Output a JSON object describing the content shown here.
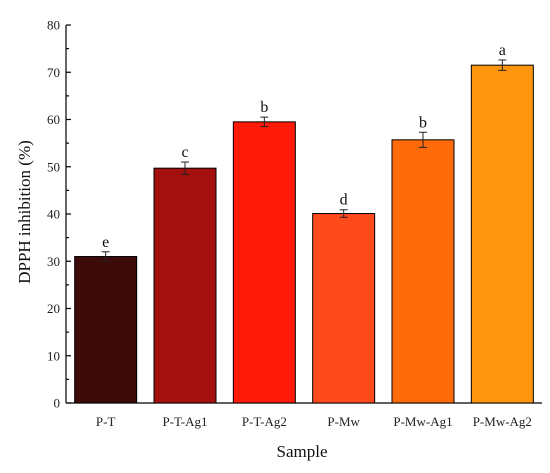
{
  "chart_data": {
    "type": "bar",
    "xlabel": "Sample",
    "ylabel": "DPPH inhibition (%)",
    "ylim": [
      0,
      80
    ],
    "yticks": [
      0,
      10,
      20,
      30,
      40,
      50,
      60,
      70,
      80
    ],
    "grid": false,
    "categories": [
      "P-T",
      "P-T-Ag1",
      "P-T-Ag2",
      "P-Mw",
      "P-Mw-Ag1",
      "P-Mw-Ag2"
    ],
    "values": [
      31.0,
      49.7,
      59.5,
      40.1,
      55.7,
      71.5
    ],
    "errors": [
      1.0,
      1.3,
      1.0,
      0.8,
      1.6,
      1.1
    ],
    "significance_letters": [
      "e",
      "c",
      "b",
      "d",
      "b",
      "a"
    ],
    "colors": [
      "#3d0a0a",
      "#a3100d",
      "#ff1a0a",
      "#ff4a1c",
      "#ff6a0a",
      "#ff950f"
    ]
  }
}
